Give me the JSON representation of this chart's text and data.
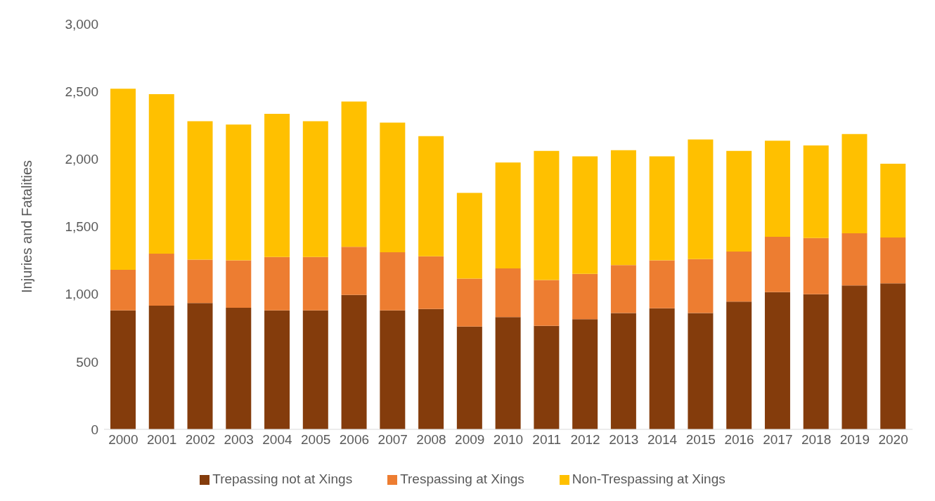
{
  "chart_data": {
    "type": "bar",
    "stacked": true,
    "ylabel": "Injuries and Fatalities",
    "categories": [
      "2000",
      "2001",
      "2002",
      "2003",
      "2004",
      "2005",
      "2006",
      "2007",
      "2008",
      "2009",
      "2010",
      "2011",
      "2012",
      "2013",
      "2014",
      "2015",
      "2016",
      "2017",
      "2018",
      "2019",
      "2020"
    ],
    "series": [
      {
        "name": "Trepassing not at Xings",
        "color": "#843c0c",
        "values": [
          880,
          915,
          935,
          900,
          880,
          880,
          995,
          880,
          890,
          760,
          830,
          765,
          815,
          860,
          895,
          860,
          945,
          1015,
          1000,
          1065,
          1080
        ]
      },
      {
        "name": "Trespassing at Xings",
        "color": "#ed7d31",
        "values": [
          300,
          385,
          320,
          350,
          395,
          395,
          355,
          430,
          390,
          355,
          360,
          340,
          335,
          355,
          355,
          400,
          370,
          410,
          415,
          385,
          340
        ]
      },
      {
        "name": "Non-Trespassing at Xings",
        "color": "#ffc000",
        "values": [
          1340,
          1180,
          1025,
          1005,
          1060,
          1005,
          1075,
          960,
          890,
          635,
          785,
          955,
          870,
          850,
          770,
          885,
          745,
          710,
          685,
          735,
          545
        ]
      }
    ],
    "ylim": [
      0,
      3000
    ],
    "yticks": [
      0,
      {
        "value": 500,
        "label": "500"
      },
      {
        "value": 1000,
        "label": "1,000"
      },
      {
        "value": 1500,
        "label": "1,500"
      },
      {
        "value": 2000,
        "label": "2,000"
      },
      {
        "value": 2500,
        "label": "2,500"
      },
      {
        "value": 3000,
        "label": "3,000"
      }
    ],
    "grid": false,
    "legend": "bottom"
  }
}
